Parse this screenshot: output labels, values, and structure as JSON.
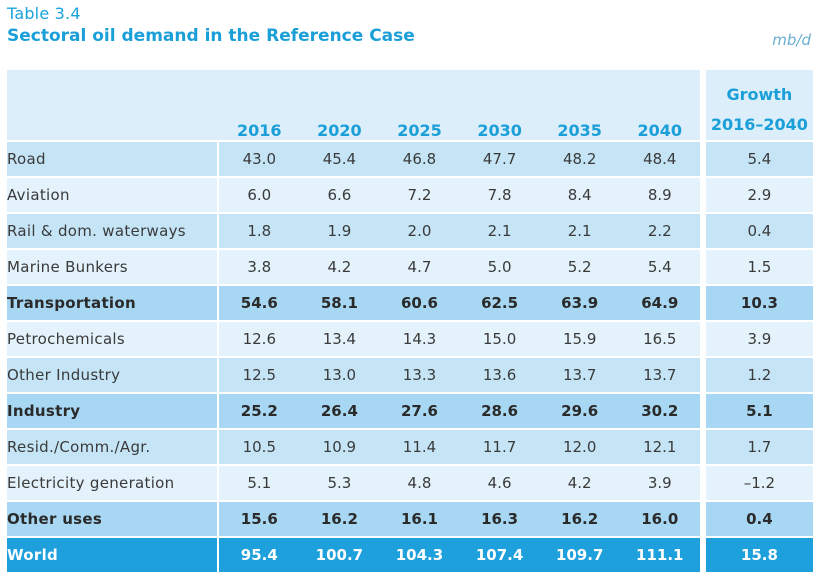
{
  "caption": {
    "table_number": "Table 3.4",
    "title": "Sectoral oil demand in the Reference Case",
    "unit": "mb/d"
  },
  "header": {
    "years": [
      "2016",
      "2020",
      "2025",
      "2030",
      "2035",
      "2040"
    ],
    "growth_line1": "Growth",
    "growth_line2": "2016–2040"
  },
  "rows": [
    {
      "label": "Road",
      "values": [
        "43.0",
        "45.4",
        "46.8",
        "47.7",
        "48.2",
        "48.4"
      ],
      "growth": "5.4",
      "style": "dark"
    },
    {
      "label": "Aviation",
      "values": [
        "6.0",
        "6.6",
        "7.2",
        "7.8",
        "8.4",
        "8.9"
      ],
      "growth": "2.9",
      "style": "light"
    },
    {
      "label": "Rail & dom. waterways",
      "values": [
        "1.8",
        "1.9",
        "2.0",
        "2.1",
        "2.1",
        "2.2"
      ],
      "growth": "0.4",
      "style": "dark"
    },
    {
      "label": "Marine Bunkers",
      "values": [
        "3.8",
        "4.2",
        "4.7",
        "5.0",
        "5.2",
        "5.4"
      ],
      "growth": "1.5",
      "style": "light"
    },
    {
      "label": "Transportation",
      "values": [
        "54.6",
        "58.1",
        "60.6",
        "62.5",
        "63.9",
        "64.9"
      ],
      "growth": "10.3",
      "style": "bold"
    },
    {
      "label": "Petrochemicals",
      "values": [
        "12.6",
        "13.4",
        "14.3",
        "15.0",
        "15.9",
        "16.5"
      ],
      "growth": "3.9",
      "style": "light"
    },
    {
      "label": "Other Industry",
      "values": [
        "12.5",
        "13.0",
        "13.3",
        "13.6",
        "13.7",
        "13.7"
      ],
      "growth": "1.2",
      "style": "dark"
    },
    {
      "label": "Industry",
      "values": [
        "25.2",
        "26.4",
        "27.6",
        "28.6",
        "29.6",
        "30.2"
      ],
      "growth": "5.1",
      "style": "bold"
    },
    {
      "label": "Resid./Comm./Agr.",
      "values": [
        "10.5",
        "10.9",
        "11.4",
        "11.7",
        "12.0",
        "12.1"
      ],
      "growth": "1.7",
      "style": "dark"
    },
    {
      "label": "Electricity generation",
      "values": [
        "5.1",
        "5.3",
        "4.8",
        "4.6",
        "4.2",
        "3.9"
      ],
      "growth": "–1.2",
      "style": "light"
    },
    {
      "label": "Other uses",
      "values": [
        "15.6",
        "16.2",
        "16.1",
        "16.3",
        "16.2",
        "16.0"
      ],
      "growth": "0.4",
      "style": "bold"
    },
    {
      "label": "World",
      "values": [
        "95.4",
        "100.7",
        "104.3",
        "107.4",
        "109.7",
        "111.1"
      ],
      "growth": "15.8",
      "style": "world"
    }
  ]
}
